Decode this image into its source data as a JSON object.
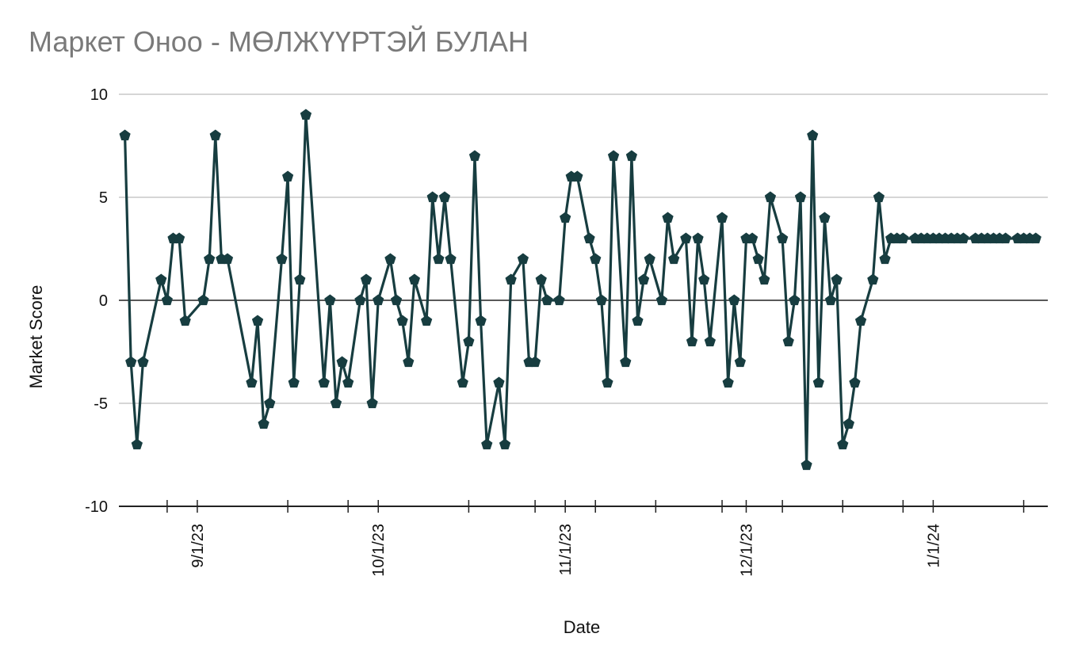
{
  "chart_data": {
    "type": "line",
    "title": "Маркет Оноо - МӨЛЖҮҮРТЭЙ БУЛАН",
    "xlabel": "Date",
    "ylabel": "Market Score",
    "ylim": [
      -10,
      10
    ],
    "yticks": [
      10,
      5,
      0,
      -5,
      -10
    ],
    "yticklabels": [
      "10",
      "5",
      "0",
      "-5",
      "-10"
    ],
    "xlim": [
      "2023-08-19",
      "2024-01-20"
    ],
    "xticks": [
      "2023-09-01",
      "2023-10-01",
      "2023-11-01",
      "2023-12-01",
      "2024-01-01"
    ],
    "xticklabels": [
      "9/1/23",
      "10/1/23",
      "11/1/23",
      "12/1/23",
      "1/1/24"
    ],
    "minor_xticks": [
      "2023-08-27",
      "2023-09-16",
      "2023-09-26",
      "2023-10-16",
      "2023-10-27",
      "2023-11-06",
      "2023-11-16",
      "2023-11-27",
      "2023-12-07",
      "2023-12-17",
      "2023-12-27",
      "2024-01-16"
    ],
    "grid": true,
    "marker": "pentagon",
    "line_color": "#173d40",
    "grid_color": "#c8c8c8",
    "series": [
      {
        "x": [
          "2023-08-20",
          "2023-08-21",
          "2023-08-22",
          "2023-08-23",
          "2023-08-26",
          "2023-08-27",
          "2023-08-28",
          "2023-08-29",
          "2023-08-30",
          "2023-09-02",
          "2023-09-03",
          "2023-09-04",
          "2023-09-05",
          "2023-09-06",
          "2023-09-10",
          "2023-09-11",
          "2023-09-12",
          "2023-09-13",
          "2023-09-15",
          "2023-09-16",
          "2023-09-17",
          "2023-09-18",
          "2023-09-19",
          "2023-09-22",
          "2023-09-23",
          "2023-09-24",
          "2023-09-25",
          "2023-09-26",
          "2023-09-28",
          "2023-09-29",
          "2023-09-30",
          "2023-10-01",
          "2023-10-03",
          "2023-10-04",
          "2023-10-05",
          "2023-10-06",
          "2023-10-07",
          "2023-10-09",
          "2023-10-10",
          "2023-10-11",
          "2023-10-12",
          "2023-10-13",
          "2023-10-15",
          "2023-10-16",
          "2023-10-17",
          "2023-10-18",
          "2023-10-19",
          "2023-10-21",
          "2023-10-22",
          "2023-10-23",
          "2023-10-25",
          "2023-10-26",
          "2023-10-27",
          "2023-10-28",
          "2023-10-29",
          "2023-10-31",
          "2023-11-01",
          "2023-11-02",
          "2023-11-03",
          "2023-11-05",
          "2023-11-06",
          "2023-11-07",
          "2023-11-08",
          "2023-11-09",
          "2023-11-11",
          "2023-11-12",
          "2023-11-13",
          "2023-11-14",
          "2023-11-15",
          "2023-11-17",
          "2023-11-18",
          "2023-11-19",
          "2023-11-21",
          "2023-11-22",
          "2023-11-23",
          "2023-11-24",
          "2023-11-25",
          "2023-11-27",
          "2023-11-28",
          "2023-11-29",
          "2023-11-30",
          "2023-12-01",
          "2023-12-02",
          "2023-12-03",
          "2023-12-04",
          "2023-12-05",
          "2023-12-07",
          "2023-12-08",
          "2023-12-09",
          "2023-12-10",
          "2023-12-11",
          "2023-12-12",
          "2023-12-13",
          "2023-12-14",
          "2023-12-15",
          "2023-12-16",
          "2023-12-17",
          "2023-12-18",
          "2023-12-19",
          "2023-12-20",
          "2023-12-22",
          "2023-12-23",
          "2023-12-24",
          "2023-12-25",
          "2023-12-26",
          "2023-12-27",
          "2023-12-29",
          "2023-12-30",
          "2023-12-31",
          "2024-01-01",
          "2024-01-02",
          "2024-01-03",
          "2024-01-04",
          "2024-01-05",
          "2024-01-06",
          "2024-01-08",
          "2024-01-09",
          "2024-01-10",
          "2024-01-11",
          "2024-01-12",
          "2024-01-13",
          "2024-01-15",
          "2024-01-16",
          "2024-01-17",
          "2024-01-18"
        ],
        "y": [
          8,
          -3,
          -7,
          -3,
          1,
          0,
          3,
          3,
          -1,
          0,
          2,
          8,
          2,
          2,
          -4,
          -1,
          -6,
          -5,
          2,
          6,
          -4,
          1,
          9,
          -4,
          0,
          -5,
          -3,
          -4,
          0,
          1,
          -5,
          0,
          2,
          0,
          -1,
          -3,
          1,
          -1,
          5,
          2,
          5,
          2,
          -4,
          -2,
          7,
          -1,
          -7,
          -4,
          -7,
          1,
          2,
          -3,
          -3,
          1,
          0,
          0,
          4,
          6,
          6,
          3,
          2,
          0,
          -4,
          7,
          -3,
          7,
          -1,
          1,
          2,
          0,
          4,
          2,
          3,
          -2,
          3,
          1,
          -2,
          4,
          -4,
          0,
          -3,
          3,
          3,
          2,
          1,
          5,
          3,
          -2,
          0,
          5,
          -8,
          8,
          -4,
          4,
          0,
          1,
          -7,
          -6,
          -4,
          -1,
          1,
          5,
          2,
          3,
          3,
          3,
          3,
          3,
          3,
          3,
          3,
          3,
          3,
          3,
          3,
          3,
          3,
          3,
          3,
          3,
          3,
          3,
          3,
          3,
          3
        ]
      }
    ]
  }
}
